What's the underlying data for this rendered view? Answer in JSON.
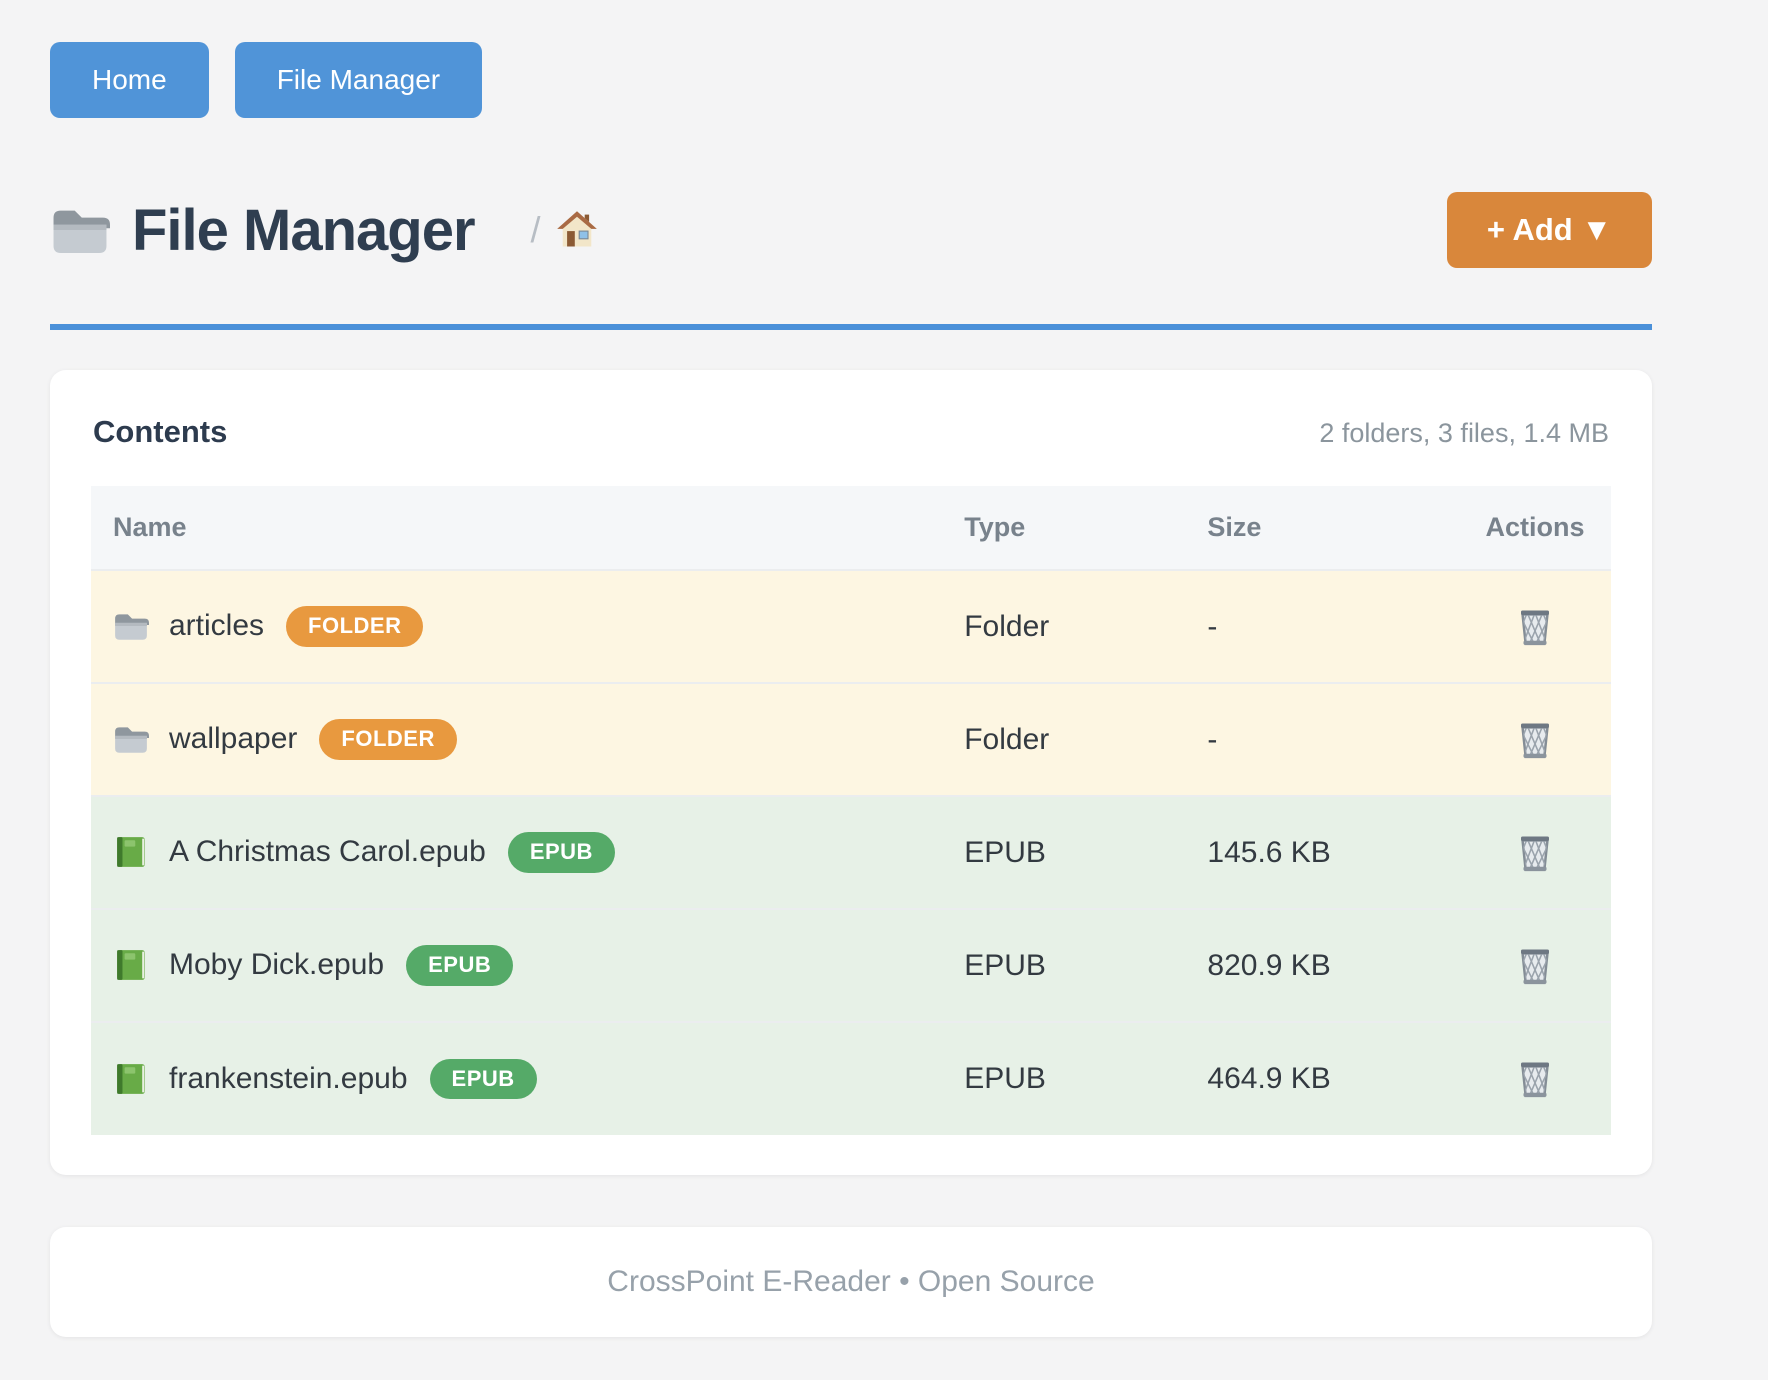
{
  "nav": {
    "home_label": "Home",
    "file_manager_label": "File Manager"
  },
  "header": {
    "title": "File Manager",
    "title_icon": "folder-icon",
    "breadcrumb_separator": "/",
    "breadcrumb_home_icon": "house-icon",
    "add_button_label": "+ Add ▼"
  },
  "contents": {
    "heading": "Contents",
    "summary": "2 folders, 3 files, 1.4 MB",
    "columns": [
      "Name",
      "Type",
      "Size",
      "Actions"
    ],
    "action_icon": "trash-icon",
    "rows": [
      {
        "icon": "folder-icon",
        "name": "articles",
        "badge": "FOLDER",
        "kind": "folder",
        "type": "Folder",
        "size": "-"
      },
      {
        "icon": "folder-icon",
        "name": "wallpaper",
        "badge": "FOLDER",
        "kind": "folder",
        "type": "Folder",
        "size": "-"
      },
      {
        "icon": "book-icon",
        "name": "A Christmas Carol.epub",
        "badge": "EPUB",
        "kind": "file",
        "type": "EPUB",
        "size": "145.6 KB"
      },
      {
        "icon": "book-icon",
        "name": "Moby Dick.epub",
        "badge": "EPUB",
        "kind": "file",
        "type": "EPUB",
        "size": "820.9 KB"
      },
      {
        "icon": "book-icon",
        "name": "frankenstein.epub",
        "badge": "EPUB",
        "kind": "file",
        "type": "EPUB",
        "size": "464.9 KB"
      }
    ]
  },
  "footer": {
    "text": "CrossPoint E-Reader • Open Source"
  },
  "colors": {
    "accent_blue": "#4a90d9",
    "button_blue": "#5094d8",
    "add_orange": "#d9873b",
    "badge_orange": "#e8993f",
    "badge_green": "#55aa68",
    "row_folder_bg": "#fdf6e2",
    "row_file_bg": "#e7f1e7",
    "page_bg": "#f4f4f5"
  }
}
